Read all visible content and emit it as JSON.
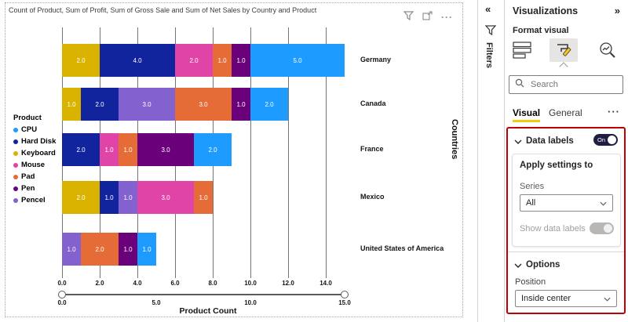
{
  "visual": {
    "title": "Count of Product, Sum of Profit, Sum of Gross Sale and Sum of Net Sales by Country and Product",
    "toolbar": {
      "more_label": "···"
    }
  },
  "chart_data": {
    "type": "bar",
    "subtype": "horizontal-stacked",
    "title": "Count of Product, Sum of Profit, Sum of Gross Sale and Sum of Net Sales by Country and Product",
    "xlabel": "Product Count",
    "ylabel": "Countries",
    "legend_title": "Product",
    "legend_position": "left",
    "grid": true,
    "x_ticks": [
      0,
      2,
      4,
      6,
      8,
      10,
      12,
      14
    ],
    "xlim": [
      0,
      15.6
    ],
    "slider_ticks": [
      0,
      5,
      10,
      15
    ],
    "legend": [
      {
        "label": "CPU",
        "color": "#1E9BFF"
      },
      {
        "label": "Hard Disk",
        "color": "#12239E"
      },
      {
        "label": "Keyboard",
        "color": "#D9B300"
      },
      {
        "label": "Mouse",
        "color": "#E044A7"
      },
      {
        "label": "Pad",
        "color": "#E66C37"
      },
      {
        "label": "Pen",
        "color": "#6B007B"
      },
      {
        "label": "Pencel",
        "color": "#8361CE"
      }
    ],
    "categories": [
      "Germany",
      "Canada",
      "France",
      "Mexico",
      "United States of America"
    ],
    "series": [
      {
        "name": "Keyboard",
        "color": "#D9B300",
        "values": [
          2,
          1,
          0,
          2,
          0
        ]
      },
      {
        "name": "Hard Disk",
        "color": "#12239E",
        "values": [
          4,
          2,
          2,
          1,
          0
        ]
      },
      {
        "name": "Pencel",
        "color": "#8361CE",
        "values": [
          0,
          3,
          0,
          1,
          1
        ]
      },
      {
        "name": "Mouse",
        "color": "#E044A7",
        "values": [
          2,
          0,
          1,
          3,
          0
        ]
      },
      {
        "name": "Pad",
        "color": "#E66C37",
        "values": [
          1,
          3,
          1,
          1,
          2
        ]
      },
      {
        "name": "Pen",
        "color": "#6B007B",
        "values": [
          1,
          1,
          3,
          0,
          1
        ]
      },
      {
        "name": "CPU",
        "color": "#1E9BFF",
        "values": [
          5,
          2,
          2,
          0,
          1
        ]
      }
    ],
    "data_labels": true,
    "value_format": "0.0",
    "totals": {
      "Germany": 15,
      "Canada": 12,
      "France": 9,
      "Mexico": 8,
      "United States of America": 5
    }
  },
  "filters_pane": {
    "collapse_icon": "«",
    "label": "Filters"
  },
  "panel": {
    "title": "Visualizations",
    "expand_icon": "»",
    "subtitle": "Format visual",
    "search_placeholder": "Search",
    "tabs": [
      {
        "label": "Visual"
      },
      {
        "label": "General"
      }
    ],
    "more_label": "···",
    "data_labels": {
      "label": "Data labels",
      "toggle_state": "On",
      "apply_title": "Apply settings to",
      "series_label": "Series",
      "series_value": "All",
      "show_label": "Show data labels",
      "options_label": "Options",
      "position_label": "Position",
      "position_value": "Inside center"
    }
  },
  "colors": {
    "highlight_box": "#C00000",
    "tab_underline": "#F2C811",
    "toggle_on": "#1F1D42"
  }
}
